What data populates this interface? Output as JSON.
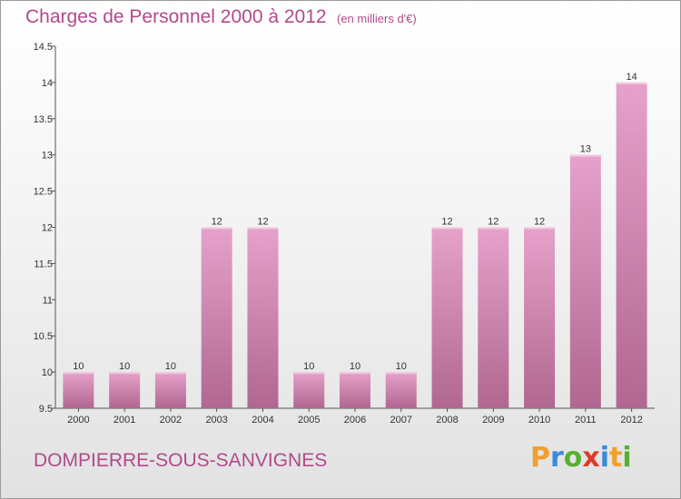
{
  "header": {
    "title": "Charges de Personnel 2000 à 2012",
    "subtitle": "(en milliers d'€)"
  },
  "footer": {
    "city": "DOMPIERRE-SOUS-SANVIGNES",
    "brand": "Proxiti",
    "brand_colors": [
      "#f0a030",
      "#3a8ad8",
      "#58b030",
      "#e03a2a",
      "#3a8ad8",
      "#f0a030",
      "#58b030"
    ]
  },
  "colors": {
    "bar_top": "#e6a2cb",
    "bar_bottom": "#b06790",
    "text_accent": "#b14a8a"
  },
  "chart_data": {
    "type": "bar",
    "title": "Charges de Personnel 2000 à 2012",
    "subtitle": "(en milliers d'€)",
    "categories": [
      "2000",
      "2001",
      "2002",
      "2003",
      "2004",
      "2005",
      "2006",
      "2007",
      "2008",
      "2009",
      "2010",
      "2011",
      "2012"
    ],
    "values": [
      10,
      10,
      10,
      12,
      12,
      10,
      10,
      10,
      12,
      12,
      12,
      13,
      14
    ],
    "value_labels": [
      "10",
      "10",
      "10",
      "12",
      "12",
      "10",
      "10",
      "10",
      "12",
      "12",
      "12",
      "13",
      "14"
    ],
    "ylim": [
      9.5,
      14.5
    ],
    "yticks": [
      9.5,
      10,
      10.5,
      11,
      11.5,
      12,
      12.5,
      13,
      13.5,
      14,
      14.5
    ],
    "ytick_labels": [
      "9.5",
      "10",
      "10.5",
      "11",
      "11.5",
      "12",
      "12.5",
      "13",
      "13.5",
      "14",
      "14.5"
    ],
    "grid": false,
    "legend": "none"
  }
}
